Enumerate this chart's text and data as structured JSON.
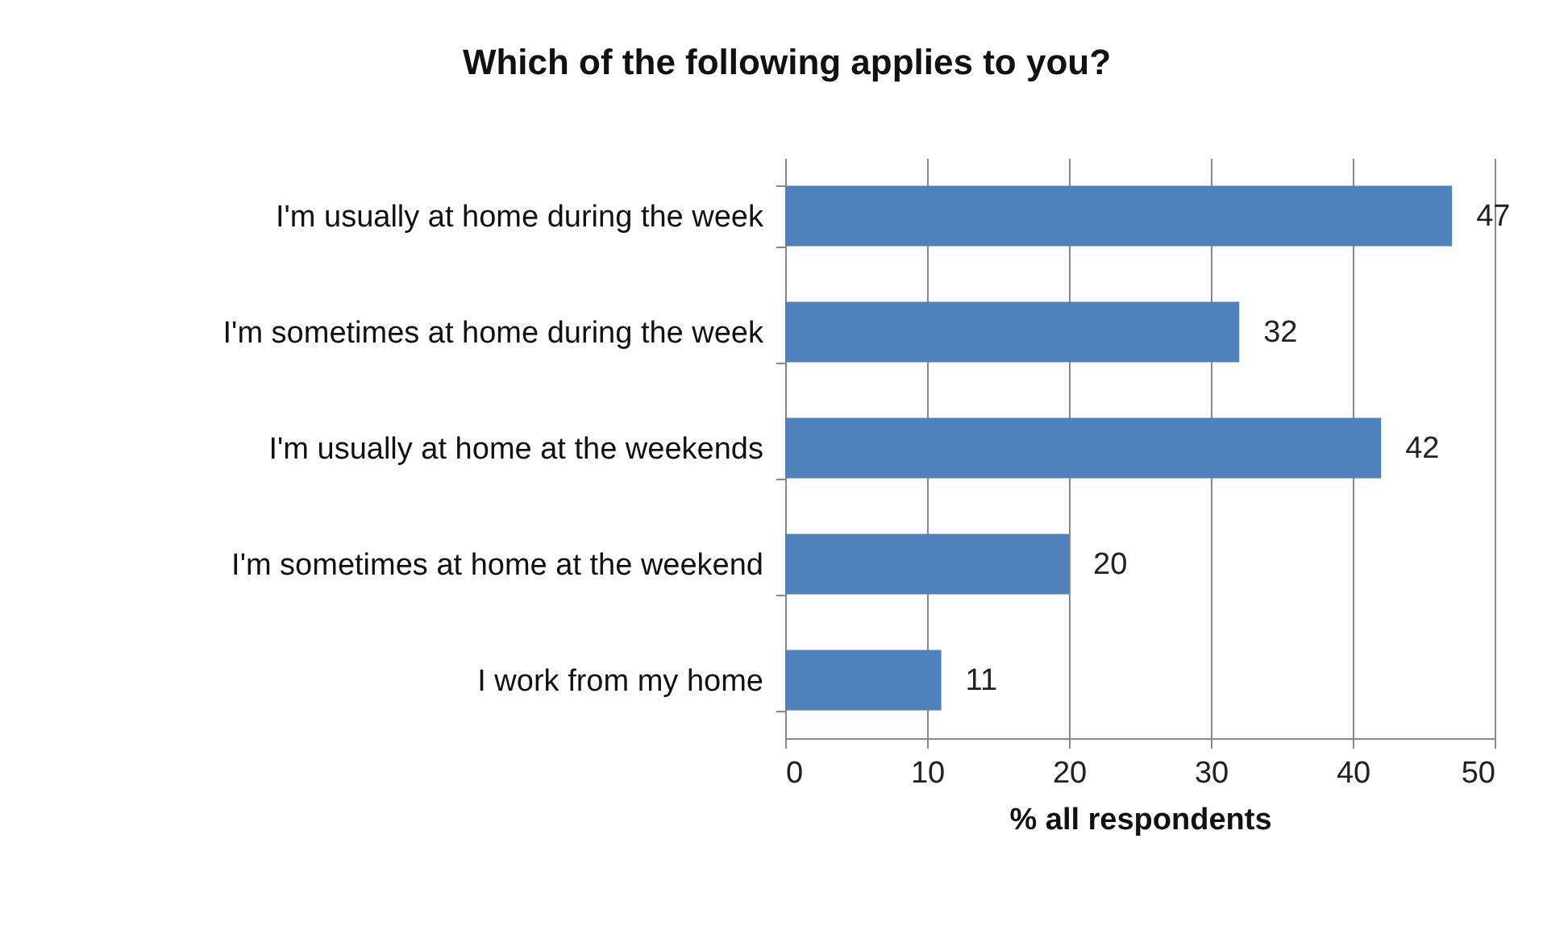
{
  "chart_data": {
    "type": "bar",
    "orientation": "horizontal",
    "title": "Which of the following applies to you?",
    "xlabel": "% all respondents",
    "categories": [
      "I'm usually at home during the week",
      "I'm sometimes at home during the week",
      "I'm usually at home at the weekends",
      "I'm sometimes at home at the weekend",
      "I work from my home"
    ],
    "values": [
      47,
      32,
      42,
      20,
      11
    ],
    "color": "#4f81bd",
    "xlim": [
      0,
      50
    ],
    "xticks": [
      0,
      10,
      20,
      30,
      40,
      50
    ],
    "grid": "x",
    "data_labels": true
  }
}
